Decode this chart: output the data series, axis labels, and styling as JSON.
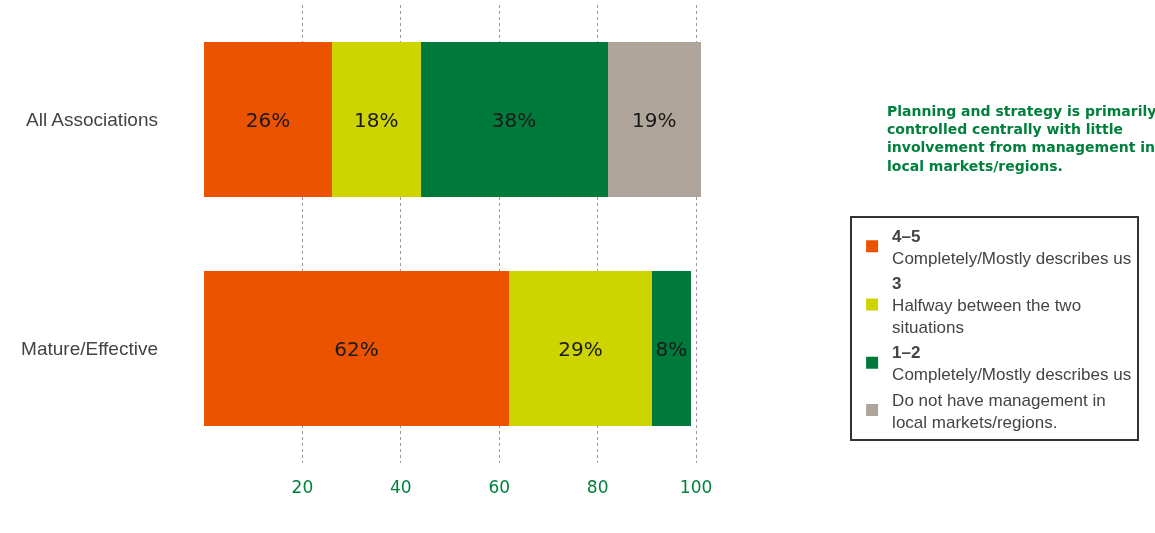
{
  "chart_data": {
    "type": "bar",
    "orientation": "horizontal",
    "stacked": true,
    "categories": [
      "All Associations",
      "Mature/Effective"
    ],
    "series": [
      {
        "name": "4–5\nCompletely/Mostly describes us",
        "color": "#ec5300",
        "values": [
          26,
          62
        ],
        "value_labels": [
          "26%",
          "62%"
        ]
      },
      {
        "name": "3\nHalfway between the two\nsituations",
        "color": "#cdd400",
        "values": [
          18,
          29
        ],
        "value_labels": [
          "18%",
          "29%"
        ]
      },
      {
        "name": "1–2\nCompletely/Mostly describes us",
        "color": "#007a3a",
        "values": [
          38,
          8
        ],
        "value_labels": [
          "38%",
          "8%"
        ]
      },
      {
        "name": "Do not have management in\nlocal markets/regions.",
        "color": "#b0a59b",
        "values": [
          19,
          null
        ],
        "value_labels": [
          "19%",
          null
        ]
      }
    ],
    "xlim": [
      0,
      101
    ],
    "xticks": [
      20,
      40,
      60,
      80,
      100
    ],
    "grid": "x",
    "legend": "right",
    "annotations": [
      "Planning and strategy is primarily\ncontrolled centrally with little\ninvolvement from management in\nlocal markets/regions."
    ]
  }
}
